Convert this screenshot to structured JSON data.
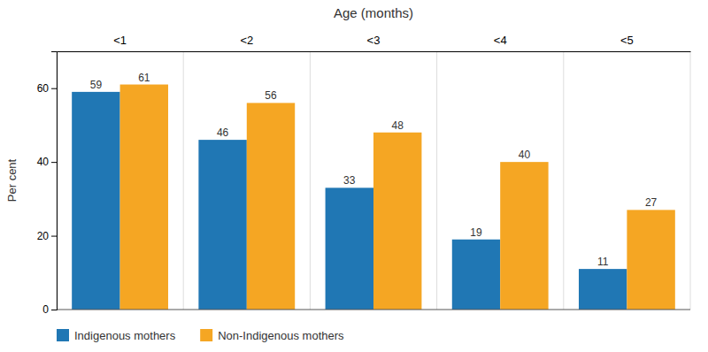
{
  "chart_data": {
    "type": "bar",
    "xlabel": "Age (months)",
    "ylabel": "Per cent",
    "categories": [
      "<1",
      "<2",
      "<3",
      "<4",
      "<5"
    ],
    "series": [
      {
        "name": "Indigenous mothers",
        "color": "#2077b4",
        "values": [
          59,
          46,
          33,
          19,
          11
        ]
      },
      {
        "name": "Non-Indigenous mothers",
        "color": "#f5a623",
        "values": [
          61,
          56,
          48,
          40,
          27
        ]
      }
    ],
    "ylim": [
      0,
      70
    ],
    "yticks": [
      0,
      20,
      40,
      60
    ],
    "data_labels": true,
    "grid": false,
    "legend": "bottom"
  }
}
